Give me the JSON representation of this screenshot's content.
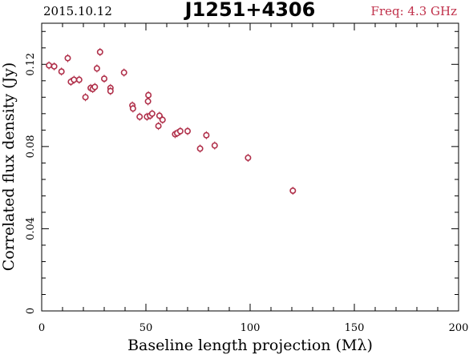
{
  "header": {
    "date": "2015.10.12",
    "title": "J1251+4306",
    "freq": "Freq: 4.3 GHz"
  },
  "colors": {
    "freq_text": "#c0304a",
    "marker": "#b0304a",
    "axis": "#000000"
  },
  "chart_data": {
    "type": "scatter",
    "title": "J1251+4306",
    "xlabel": "Baseline length projection (Mλ)",
    "ylabel": "Correlated flux density (Jy)",
    "xlim": [
      0,
      200
    ],
    "ylim": [
      0,
      0.14
    ],
    "xticks": [
      0,
      50,
      100,
      150,
      200
    ],
    "xtick_labels": [
      "0",
      "50",
      "100",
      "150",
      "200"
    ],
    "yticks": [
      0,
      0.04,
      0.08,
      0.12
    ],
    "ytick_labels": [
      "0",
      "0.04",
      "0.08",
      "0.12"
    ],
    "grid": false,
    "series": [
      {
        "marker": "open-circle-with-errorbar",
        "points": [
          {
            "x": 3.5,
            "y": 0.1195
          },
          {
            "x": 6.0,
            "y": 0.119
          },
          {
            "x": 9.5,
            "y": 0.1165
          },
          {
            "x": 12.5,
            "y": 0.123
          },
          {
            "x": 14.0,
            "y": 0.1115
          },
          {
            "x": 15.5,
            "y": 0.1125
          },
          {
            "x": 18.0,
            "y": 0.1125
          },
          {
            "x": 21.0,
            "y": 0.104
          },
          {
            "x": 23.5,
            "y": 0.1085
          },
          {
            "x": 24.5,
            "y": 0.108
          },
          {
            "x": 25.5,
            "y": 0.109
          },
          {
            "x": 26.5,
            "y": 0.118
          },
          {
            "x": 28.0,
            "y": 0.126
          },
          {
            "x": 30.0,
            "y": 0.113
          },
          {
            "x": 33.0,
            "y": 0.1085
          },
          {
            "x": 33.0,
            "y": 0.107
          },
          {
            "x": 39.5,
            "y": 0.116
          },
          {
            "x": 43.5,
            "y": 0.1
          },
          {
            "x": 43.8,
            "y": 0.0985
          },
          {
            "x": 47.0,
            "y": 0.0945
          },
          {
            "x": 50.5,
            "y": 0.0945
          },
          {
            "x": 51.0,
            "y": 0.102
          },
          {
            "x": 51.2,
            "y": 0.105
          },
          {
            "x": 52.0,
            "y": 0.095
          },
          {
            "x": 53.0,
            "y": 0.096
          },
          {
            "x": 56.0,
            "y": 0.09
          },
          {
            "x": 56.5,
            "y": 0.095
          },
          {
            "x": 58.0,
            "y": 0.093
          },
          {
            "x": 64.0,
            "y": 0.086
          },
          {
            "x": 65.0,
            "y": 0.0865
          },
          {
            "x": 66.5,
            "y": 0.0875
          },
          {
            "x": 70.0,
            "y": 0.0875
          },
          {
            "x": 76.0,
            "y": 0.079
          },
          {
            "x": 79.0,
            "y": 0.0855
          },
          {
            "x": 83.0,
            "y": 0.0805
          },
          {
            "x": 99.0,
            "y": 0.0745
          },
          {
            "x": 120.5,
            "y": 0.0585
          }
        ]
      }
    ]
  }
}
